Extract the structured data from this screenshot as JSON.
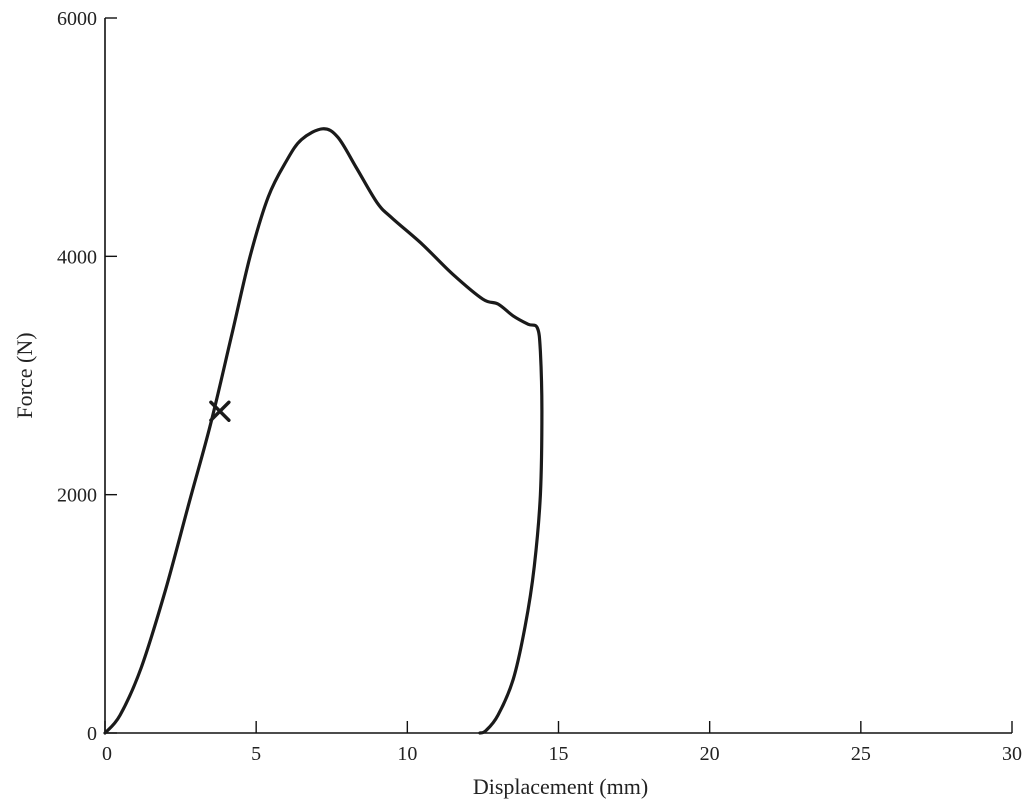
{
  "chart_data": {
    "type": "line",
    "title": "",
    "xlabel": "Displacement (mm)",
    "ylabel": "Force (N)",
    "xlim": [
      0,
      30
    ],
    "ylim": [
      0,
      6000
    ],
    "xticks": [
      0,
      5,
      10,
      15,
      20,
      25,
      30
    ],
    "yticks": [
      0,
      2000,
      4000,
      6000
    ],
    "grid": false,
    "series": [
      {
        "x": [
          0.0,
          0.5,
          1.2,
          2.0,
          2.8,
          3.5,
          4.2,
          4.8,
          5.4,
          6.0,
          6.5,
          7.2,
          7.7,
          8.3,
          9.0,
          9.5,
          10.5,
          11.5,
          12.5,
          13.0,
          13.5,
          14.0,
          14.3,
          14.4,
          14.45,
          14.4,
          14.2,
          13.9,
          13.5,
          13.0,
          12.6,
          12.4
        ],
        "y": [
          0,
          150,
          550,
          1200,
          1950,
          2600,
          3350,
          4000,
          4500,
          4800,
          4980,
          5070,
          5000,
          4750,
          4450,
          4320,
          4100,
          3850,
          3640,
          3600,
          3500,
          3430,
          3400,
          3200,
          2700,
          2000,
          1400,
          900,
          450,
          150,
          20,
          0
        ]
      }
    ],
    "annotations": [
      {
        "type": "marker",
        "symbol": "x",
        "x": 3.8,
        "y": 2700
      }
    ]
  }
}
